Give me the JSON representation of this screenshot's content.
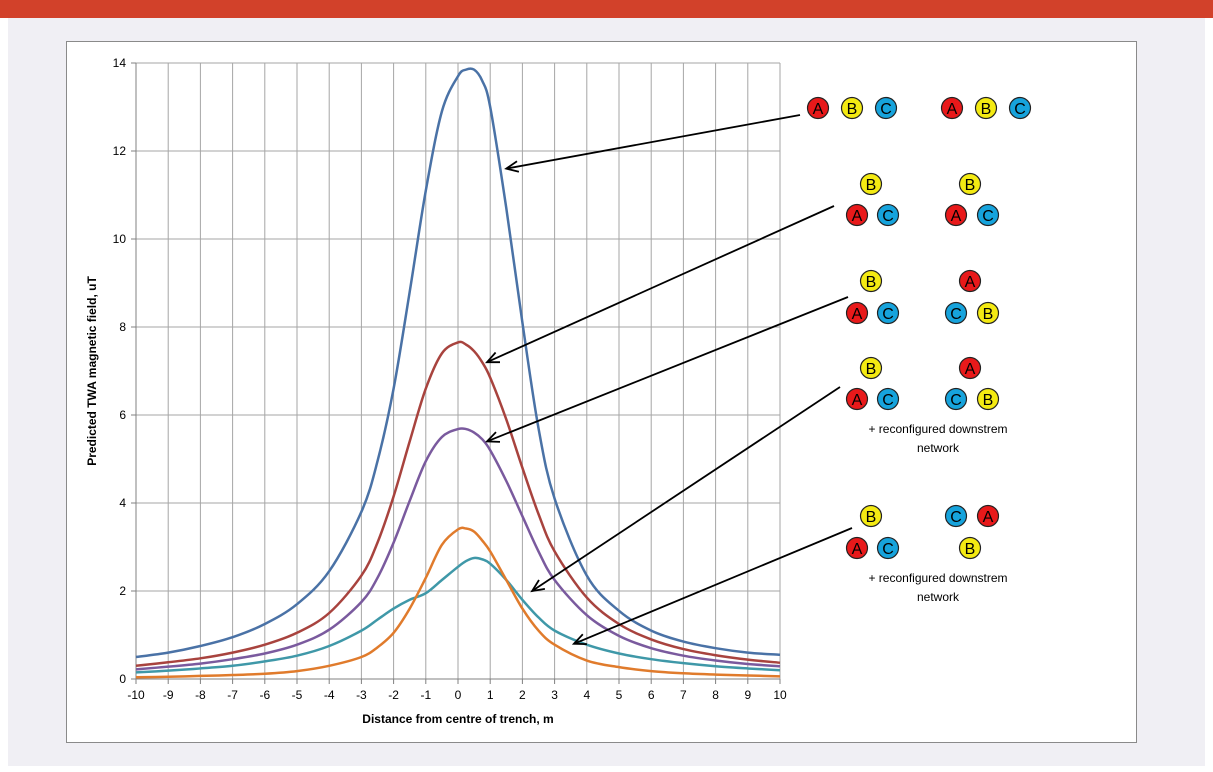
{
  "colors": {
    "top_bar": "#d2412a",
    "panel": "#f0eff4",
    "grid": "#a6a6a6",
    "phase_A": "#e8191a",
    "phase_B": "#f4ea12",
    "phase_C": "#16a3dc"
  },
  "chart_data": {
    "type": "line",
    "xlabel": "Distance from centre of trench, m",
    "ylabel": "Predicted TWA magnetic field, uT",
    "xlim": [
      -10,
      10
    ],
    "ylim": [
      0,
      14
    ],
    "x_ticks": [
      "-10",
      "-9",
      "-8",
      "-7",
      "-6",
      "-5",
      "-4",
      "-3",
      "-2",
      "-1",
      "0",
      "1",
      "2",
      "3",
      "4",
      "5",
      "6",
      "7",
      "8",
      "9",
      "10"
    ],
    "y_ticks": [
      "0",
      "2",
      "4",
      "6",
      "8",
      "10",
      "12",
      "14"
    ],
    "grid": true,
    "x": [
      -10,
      -9,
      -8,
      -7,
      -6,
      -5,
      -4,
      -3,
      -2.5,
      -2,
      -1.5,
      -1,
      -0.5,
      0,
      0.25,
      0.5,
      0.75,
      1,
      1.5,
      2,
      2.5,
      3,
      4,
      5,
      6,
      7,
      8,
      9,
      10
    ],
    "series": [
      {
        "color": "#4a72a6",
        "values": [
          0.5,
          0.6,
          0.75,
          0.95,
          1.25,
          1.7,
          2.45,
          3.8,
          4.95,
          6.6,
          8.8,
          11.1,
          12.9,
          13.7,
          13.85,
          13.85,
          13.6,
          13.0,
          10.7,
          8.1,
          5.7,
          4.1,
          2.35,
          1.55,
          1.1,
          0.85,
          0.7,
          0.6,
          0.55
        ]
      },
      {
        "color": "#a8433e",
        "values": [
          0.3,
          0.38,
          0.47,
          0.6,
          0.78,
          1.05,
          1.5,
          2.35,
          3.1,
          4.15,
          5.4,
          6.6,
          7.4,
          7.65,
          7.6,
          7.45,
          7.2,
          6.85,
          5.9,
          4.8,
          3.75,
          2.9,
          1.85,
          1.25,
          0.9,
          0.68,
          0.54,
          0.44,
          0.37
        ]
      },
      {
        "color": "#7a5a9e",
        "values": [
          0.22,
          0.28,
          0.35,
          0.45,
          0.58,
          0.78,
          1.12,
          1.75,
          2.3,
          3.1,
          4.05,
          4.95,
          5.5,
          5.68,
          5.68,
          5.6,
          5.45,
          5.2,
          4.5,
          3.7,
          2.9,
          2.25,
          1.45,
          0.98,
          0.7,
          0.53,
          0.42,
          0.34,
          0.29
        ]
      },
      {
        "color": "#3f98a8",
        "values": [
          0.15,
          0.19,
          0.24,
          0.3,
          0.4,
          0.53,
          0.75,
          1.1,
          1.35,
          1.6,
          1.8,
          1.95,
          2.25,
          2.55,
          2.68,
          2.75,
          2.72,
          2.62,
          2.25,
          1.8,
          1.4,
          1.1,
          0.78,
          0.58,
          0.45,
          0.36,
          0.29,
          0.24,
          0.2
        ]
      },
      {
        "color": "#e07b2c",
        "values": [
          0.04,
          0.05,
          0.07,
          0.09,
          0.12,
          0.18,
          0.3,
          0.5,
          0.72,
          1.05,
          1.6,
          2.3,
          3.05,
          3.4,
          3.42,
          3.35,
          3.15,
          2.9,
          2.25,
          1.6,
          1.1,
          0.78,
          0.42,
          0.27,
          0.18,
          0.13,
          0.1,
          0.08,
          0.06
        ]
      }
    ]
  },
  "configs": [
    {
      "balls": [
        {
          "label": "A",
          "phase": "A"
        },
        {
          "label": "B",
          "phase": "B"
        },
        {
          "label": "C",
          "phase": "C"
        },
        {
          "label": "A",
          "phase": "A"
        },
        {
          "label": "B",
          "phase": "B"
        },
        {
          "label": "C",
          "phase": "C"
        }
      ],
      "arrow_to": {
        "x": 1.5,
        "y": 11.6
      },
      "note": []
    },
    {
      "balls": [
        {
          "label": "B",
          "phase": "B"
        },
        {
          "label": "A",
          "phase": "A"
        },
        {
          "label": "C",
          "phase": "C"
        },
        {
          "label": "B",
          "phase": "B"
        },
        {
          "label": "A",
          "phase": "A"
        },
        {
          "label": "C",
          "phase": "C"
        }
      ],
      "arrow_to": {
        "x": 0.9,
        "y": 7.2
      },
      "note": []
    },
    {
      "balls": [
        {
          "label": "B",
          "phase": "B"
        },
        {
          "label": "A",
          "phase": "A"
        },
        {
          "label": "C",
          "phase": "C"
        },
        {
          "label": "A",
          "phase": "A"
        },
        {
          "label": "C",
          "phase": "C"
        },
        {
          "label": "B",
          "phase": "B"
        }
      ],
      "arrow_to": {
        "x": 0.9,
        "y": 5.4
      },
      "note": []
    },
    {
      "balls": [
        {
          "label": "B",
          "phase": "B"
        },
        {
          "label": "A",
          "phase": "A"
        },
        {
          "label": "C",
          "phase": "C"
        },
        {
          "label": "A",
          "phase": "A"
        },
        {
          "label": "C",
          "phase": "C"
        },
        {
          "label": "B",
          "phase": "B"
        }
      ],
      "arrow_to": {
        "x": 2.3,
        "y": 2.0
      },
      "note": [
        "+ reconfigured downstrem",
        "network"
      ]
    },
    {
      "balls": [
        {
          "label": "B",
          "phase": "B"
        },
        {
          "label": "A",
          "phase": "A"
        },
        {
          "label": "C",
          "phase": "C"
        },
        {
          "label": "C",
          "phase": "C"
        },
        {
          "label": "A",
          "phase": "A"
        },
        {
          "label": "B",
          "phase": "B"
        }
      ],
      "arrow_to": {
        "x": 3.6,
        "y": 0.8
      },
      "note": [
        "+ reconfigured downstrem",
        "network"
      ]
    }
  ]
}
